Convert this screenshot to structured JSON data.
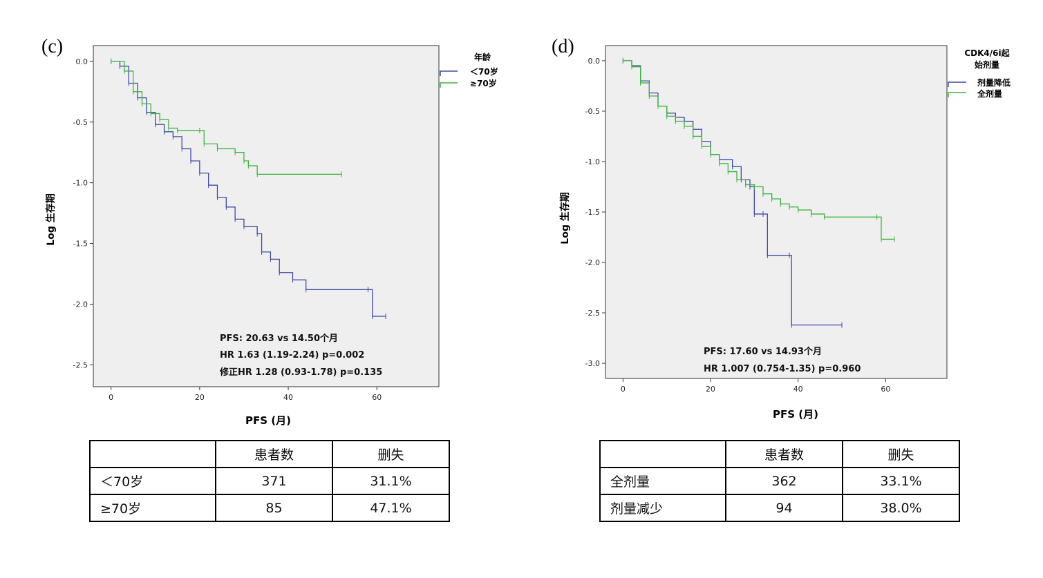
{
  "panels": [
    {
      "letter": "(c)",
      "ylabel": "Log 生存期",
      "xlabel": "PFS (月)",
      "legend": {
        "title": "年龄",
        "items": [
          {
            "label": "＜70岁",
            "color": "#3f4aa5"
          },
          {
            "label": "≥70岁",
            "color": "#3cb43c"
          }
        ]
      },
      "annotations": [
        "PFS: 20.63 vs 14.50个月",
        "HR 1.63 (1.19-2.24) p=0.002",
        "修正HR 1.28 (0.93-1.78) p=0.135"
      ],
      "yticks": [
        "0.0",
        "-0.5",
        "-1.0",
        "-1.5",
        "-2.0",
        "-2.5"
      ],
      "xticks": [
        "0",
        "20",
        "40",
        "60"
      ],
      "table": {
        "header": [
          "",
          "患者数",
          "删失"
        ],
        "rows": [
          [
            "＜70岁",
            "371",
            "31.1%"
          ],
          [
            "≥70岁",
            "85",
            "47.1%"
          ]
        ]
      }
    },
    {
      "letter": "(d)",
      "ylabel": "Log 生存期",
      "xlabel": "PFS (月)",
      "legend": {
        "title": "CDK4/6i起\n始剂量",
        "title_lines": [
          "CDK4/6i起",
          "始剂量"
        ],
        "items": [
          {
            "label": "剂量降低",
            "color": "#3f4aa5"
          },
          {
            "label": "全剂量",
            "color": "#3cb43c"
          }
        ]
      },
      "annotations": [
        "PFS: 17.60 vs 14.93个月",
        "HR 1.007 (0.754-1.35) p=0.960"
      ],
      "yticks": [
        "0.0",
        "-0.5",
        "-1.0",
        "-1.5",
        "-2.0",
        "-2.5",
        "-3.0"
      ],
      "xticks": [
        "0",
        "20",
        "40",
        "60"
      ],
      "table": {
        "header": [
          "",
          "患者数",
          "删失"
        ],
        "rows": [
          [
            "全剂量",
            "362",
            "33.1%"
          ],
          [
            "剂量减少",
            "94",
            "38.0%"
          ]
        ]
      }
    }
  ],
  "chart_data": [
    {
      "type": "line",
      "xlim": [
        -4,
        74
      ],
      "ylim": [
        -2.68,
        0.13
      ],
      "step": true,
      "series": [
        {
          "name": "＜70岁",
          "color": "#3f4aa5",
          "points": [
            [
              0,
              0
            ],
            [
              2,
              -0.04
            ],
            [
              4,
              -0.18
            ],
            [
              6,
              -0.3
            ],
            [
              8,
              -0.42
            ],
            [
              10,
              -0.52
            ],
            [
              12,
              -0.58
            ],
            [
              14,
              -0.62
            ],
            [
              16,
              -0.72
            ],
            [
              18,
              -0.82
            ],
            [
              20,
              -0.92
            ],
            [
              22,
              -1.02
            ],
            [
              24,
              -1.12
            ],
            [
              26,
              -1.2
            ],
            [
              28,
              -1.3
            ],
            [
              30,
              -1.36
            ],
            [
              33,
              -1.42
            ],
            [
              34,
              -1.57
            ],
            [
              36,
              -1.63
            ],
            [
              38,
              -1.74
            ],
            [
              41,
              -1.8
            ],
            [
              44,
              -1.88
            ],
            [
              58,
              -1.88
            ],
            [
              59,
              -2.1
            ],
            [
              62,
              -2.1
            ]
          ]
        },
        {
          "name": "≥70岁",
          "color": "#3cb43c",
          "points": [
            [
              0,
              0
            ],
            [
              3,
              -0.08
            ],
            [
              5,
              -0.25
            ],
            [
              7,
              -0.35
            ],
            [
              9,
              -0.43
            ],
            [
              11,
              -0.48
            ],
            [
              13,
              -0.55
            ],
            [
              15,
              -0.57
            ],
            [
              20,
              -0.57
            ],
            [
              21,
              -0.68
            ],
            [
              24,
              -0.72
            ],
            [
              28,
              -0.75
            ],
            [
              30,
              -0.82
            ],
            [
              31,
              -0.86
            ],
            [
              33,
              -0.93
            ],
            [
              52,
              -0.93
            ]
          ]
        }
      ]
    },
    {
      "type": "line",
      "xlim": [
        -4,
        74
      ],
      "ylim": [
        -3.15,
        0.15
      ],
      "step": true,
      "series": [
        {
          "name": "剂量降低",
          "color": "#3f4aa5",
          "points": [
            [
              0,
              0
            ],
            [
              2,
              -0.05
            ],
            [
              4,
              -0.2
            ],
            [
              6,
              -0.32
            ],
            [
              8,
              -0.45
            ],
            [
              10,
              -0.52
            ],
            [
              12,
              -0.56
            ],
            [
              14,
              -0.6
            ],
            [
              16,
              -0.68
            ],
            [
              18,
              -0.8
            ],
            [
              20,
              -0.93
            ],
            [
              22,
              -0.98
            ],
            [
              25,
              -1.05
            ],
            [
              27,
              -1.18
            ],
            [
              29,
              -1.25
            ],
            [
              30,
              -1.52
            ],
            [
              32,
              -1.52
            ],
            [
              33,
              -1.93
            ],
            [
              38,
              -1.93
            ],
            [
              38.5,
              -2.62
            ],
            [
              50,
              -2.62
            ]
          ]
        },
        {
          "name": "全剂量",
          "color": "#3cb43c",
          "points": [
            [
              0,
              0
            ],
            [
              2,
              -0.06
            ],
            [
              4,
              -0.22
            ],
            [
              6,
              -0.35
            ],
            [
              8,
              -0.45
            ],
            [
              10,
              -0.55
            ],
            [
              12,
              -0.6
            ],
            [
              14,
              -0.65
            ],
            [
              16,
              -0.75
            ],
            [
              18,
              -0.85
            ],
            [
              20,
              -0.93
            ],
            [
              22,
              -1.02
            ],
            [
              24,
              -1.1
            ],
            [
              26,
              -1.18
            ],
            [
              28,
              -1.23
            ],
            [
              30,
              -1.25
            ],
            [
              32,
              -1.32
            ],
            [
              34,
              -1.37
            ],
            [
              36,
              -1.42
            ],
            [
              38,
              -1.45
            ],
            [
              40,
              -1.48
            ],
            [
              43,
              -1.52
            ],
            [
              46,
              -1.55
            ],
            [
              58,
              -1.55
            ],
            [
              59,
              -1.77
            ],
            [
              62,
              -1.77
            ]
          ]
        }
      ]
    }
  ]
}
